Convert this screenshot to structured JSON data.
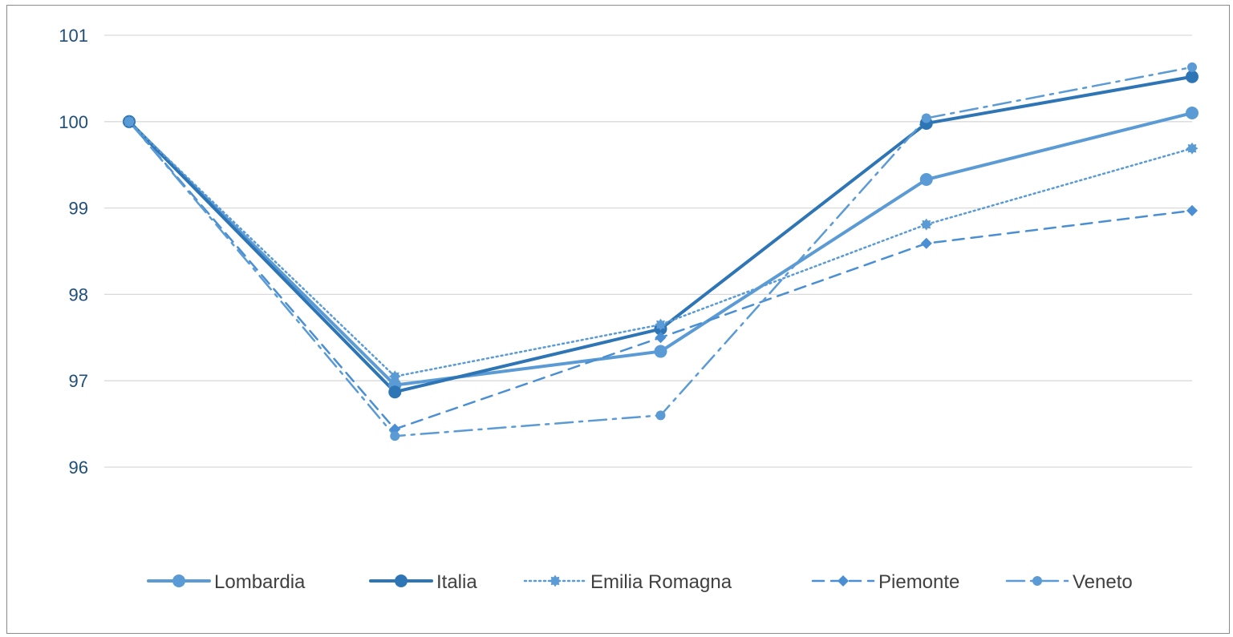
{
  "chart_data": {
    "type": "line",
    "title": "",
    "xlabel": "",
    "ylabel": "",
    "x": [
      1,
      2,
      3,
      4,
      5
    ],
    "ylim": [
      96,
      101
    ],
    "yticks": [
      "96",
      "97",
      "98",
      "99",
      "100",
      "101"
    ],
    "grid": true,
    "legend_position": "bottom",
    "series": [
      {
        "name": "Lombardia",
        "values": [
          100,
          96.95,
          97.34,
          99.33,
          100.1
        ],
        "color": "#5b9bd5",
        "dash": "",
        "width": 4,
        "marker": "circle"
      },
      {
        "name": "Italia",
        "values": [
          100,
          96.87,
          97.6,
          99.98,
          100.52
        ],
        "color": "#2e75b6",
        "dash": "",
        "width": 4,
        "marker": "circle"
      },
      {
        "name": "Emilia Romagna",
        "values": [
          100,
          97.05,
          97.65,
          98.81,
          99.69
        ],
        "color": "#5b9bd5",
        "dash": "2 4",
        "width": 2.5,
        "marker": "gear"
      },
      {
        "name": "Piemonte",
        "values": [
          100,
          96.44,
          97.5,
          98.59,
          98.97
        ],
        "color": "#4a8fd4",
        "dash": "14 9",
        "width": 2.5,
        "marker": "diamond"
      },
      {
        "name": "Veneto",
        "values": [
          100,
          96.36,
          96.6,
          100.04,
          100.63
        ],
        "color": "#5b9bd5",
        "dash": "22 8 4 8",
        "width": 2.5,
        "marker": "circle-small"
      }
    ]
  }
}
